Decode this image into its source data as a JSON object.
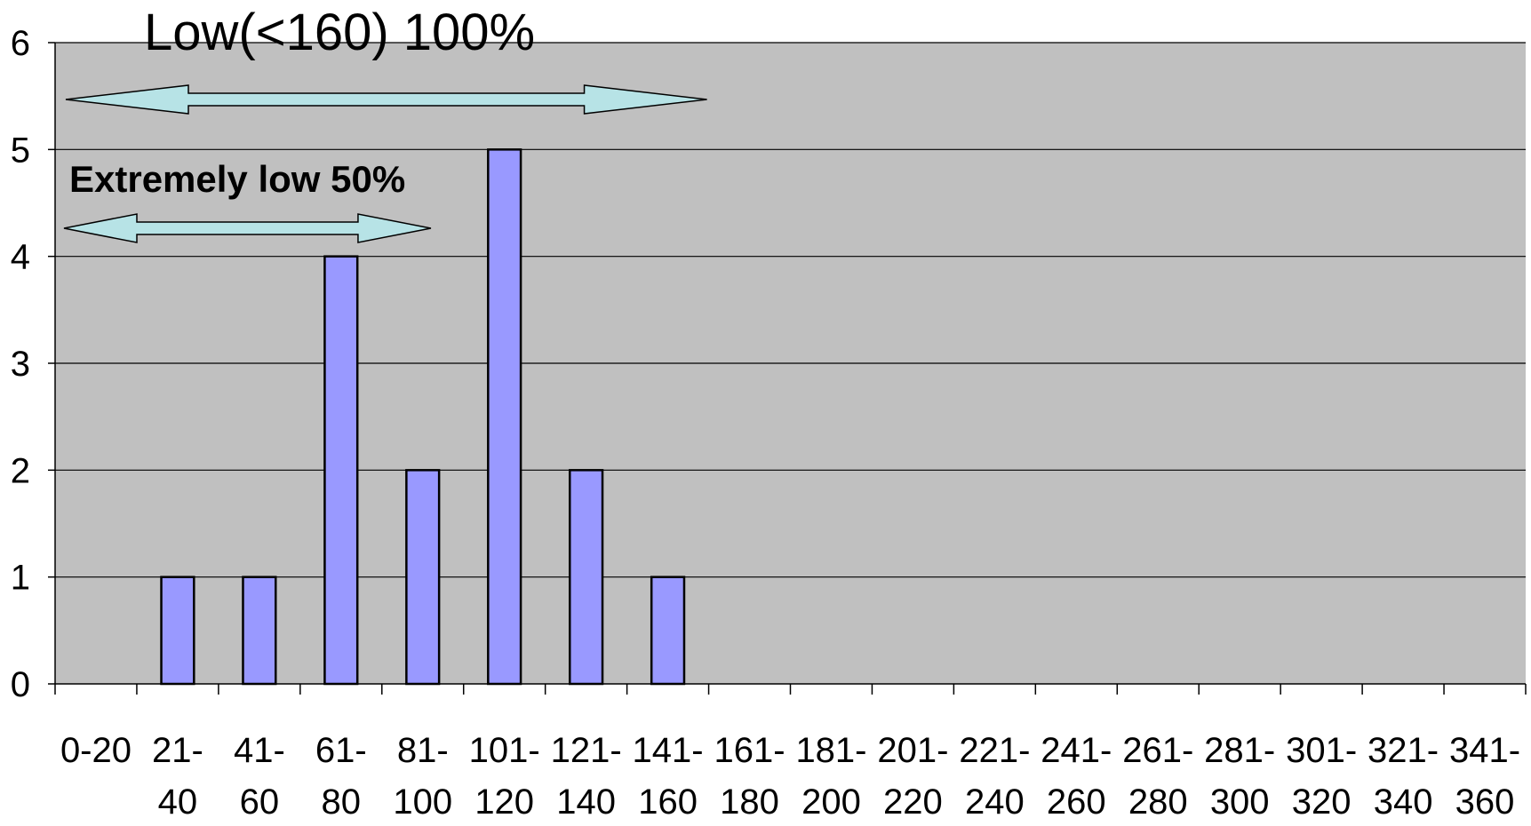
{
  "chart_data": {
    "type": "bar",
    "categories": [
      [
        "0-20"
      ],
      [
        "21-",
        "40"
      ],
      [
        "41-",
        "60"
      ],
      [
        "61-",
        "80"
      ],
      [
        "81-",
        "100"
      ],
      [
        "101-",
        "120"
      ],
      [
        "121-",
        "140"
      ],
      [
        "141-",
        "160"
      ],
      [
        "161-",
        "180"
      ],
      [
        "181-",
        "200"
      ],
      [
        "201-",
        "220"
      ],
      [
        "221-",
        "240"
      ],
      [
        "241-",
        "260"
      ],
      [
        "261-",
        "280"
      ],
      [
        "281-",
        "300"
      ],
      [
        "301-",
        "320"
      ],
      [
        "321-",
        "340"
      ],
      [
        "341-",
        "360"
      ]
    ],
    "values": [
      0,
      1,
      1,
      4,
      2,
      5,
      2,
      1,
      0,
      0,
      0,
      0,
      0,
      0,
      0,
      0,
      0,
      0
    ],
    "ylim": [
      0,
      6
    ],
    "yticks": [
      0,
      1,
      2,
      3,
      4,
      5,
      6
    ],
    "grid": true,
    "legend": "none",
    "annotations": [
      {
        "id": "low",
        "text": "Low(<160) 100%",
        "x_start": "0-20",
        "x_end": "141-160"
      },
      {
        "id": "extremely-low",
        "text": "Extremely low 50%",
        "x_start": "0-20",
        "x_end": "81-100"
      }
    ],
    "colors": {
      "plot_background": "#c0c0c0",
      "bar_fill": "#9999ff",
      "bar_stroke": "#000000",
      "arrow_fill": "#b7e3e6",
      "gridline": "#000000"
    }
  }
}
